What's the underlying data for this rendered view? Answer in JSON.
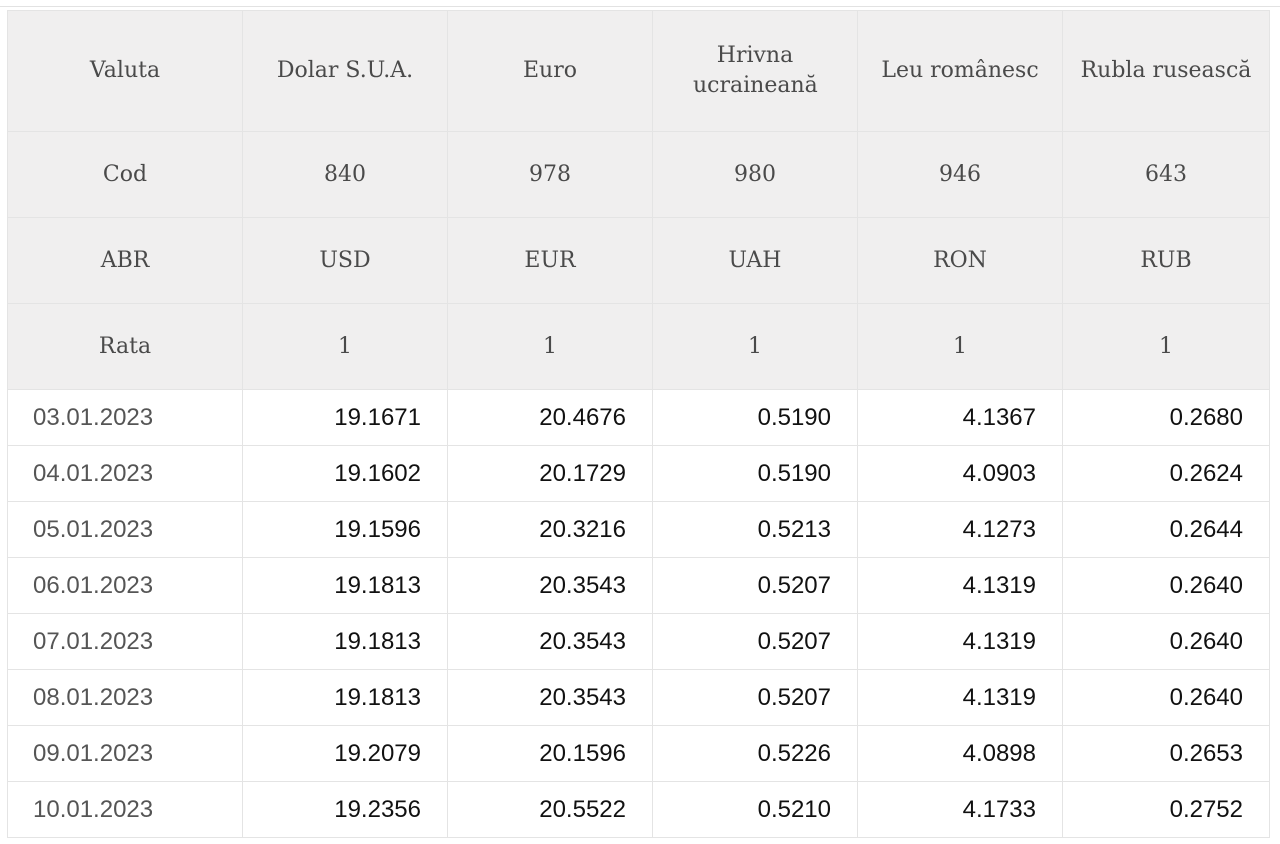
{
  "table": {
    "header_rows": [
      {
        "label": "Valuta",
        "cells": [
          "Dolar S.U.A.",
          "Euro",
          "Hrivna ucraineană",
          "Leu românesc",
          "Rubla rusească"
        ]
      },
      {
        "label": "Cod",
        "cells": [
          "840",
          "978",
          "980",
          "946",
          "643"
        ]
      },
      {
        "label": "ABR",
        "cells": [
          "USD",
          "EUR",
          "UAH",
          "RON",
          "RUB"
        ]
      },
      {
        "label": "Rata",
        "cells": [
          "1",
          "1",
          "1",
          "1",
          "1"
        ]
      }
    ],
    "rows": [
      {
        "date": "03.01.2023",
        "values": [
          "19.1671",
          "20.4676",
          "0.5190",
          "4.1367",
          "0.2680"
        ]
      },
      {
        "date": "04.01.2023",
        "values": [
          "19.1602",
          "20.1729",
          "0.5190",
          "4.0903",
          "0.2624"
        ]
      },
      {
        "date": "05.01.2023",
        "values": [
          "19.1596",
          "20.3216",
          "0.5213",
          "4.1273",
          "0.2644"
        ]
      },
      {
        "date": "06.01.2023",
        "values": [
          "19.1813",
          "20.3543",
          "0.5207",
          "4.1319",
          "0.2640"
        ]
      },
      {
        "date": "07.01.2023",
        "values": [
          "19.1813",
          "20.3543",
          "0.5207",
          "4.1319",
          "0.2640"
        ]
      },
      {
        "date": "08.01.2023",
        "values": [
          "19.1813",
          "20.3543",
          "0.5207",
          "4.1319",
          "0.2640"
        ]
      },
      {
        "date": "09.01.2023",
        "values": [
          "19.2079",
          "20.1596",
          "0.5226",
          "4.0898",
          "0.2653"
        ]
      },
      {
        "date": "10.01.2023",
        "values": [
          "19.2356",
          "20.5522",
          "0.5210",
          "4.1733",
          "0.2752"
        ]
      }
    ]
  }
}
